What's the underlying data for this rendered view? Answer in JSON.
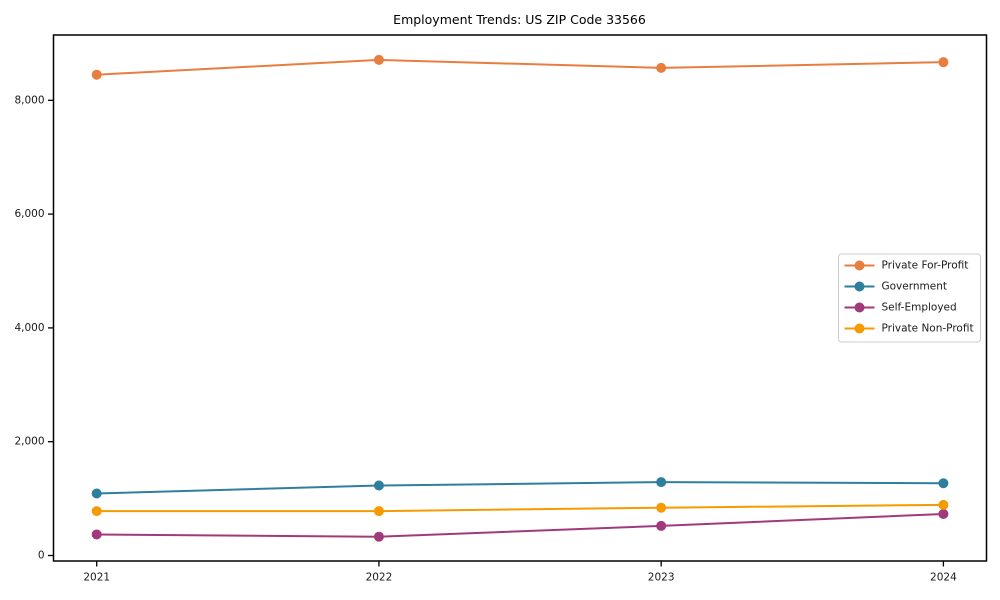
{
  "title": "Employment Trends: US ZIP Code 33566",
  "chart_data": {
    "type": "line",
    "title": "Employment Trends: US ZIP Code 33566",
    "xlabel": "",
    "ylabel": "",
    "x": [
      2021,
      2022,
      2023,
      2024
    ],
    "xtick_labels": [
      "2021",
      "2022",
      "2023",
      "2024"
    ],
    "yticks": [
      0,
      2000,
      4000,
      6000,
      8000
    ],
    "ytick_labels": [
      "0",
      "2,000",
      "4,000",
      "6,000",
      "8,000"
    ],
    "ylim": [
      -100,
      9150
    ],
    "grid": false,
    "legend_position": "right",
    "series": [
      {
        "name": "Private For-Profit",
        "color": "#e87e3e",
        "values": [
          8450,
          8710,
          8570,
          8670
        ]
      },
      {
        "name": "Government",
        "color": "#2e7f9e",
        "values": [
          1090,
          1230,
          1290,
          1270
        ]
      },
      {
        "name": "Self-Employed",
        "color": "#a13a7d",
        "values": [
          370,
          330,
          520,
          730
        ]
      },
      {
        "name": "Private Non-Profit",
        "color": "#f59b00",
        "values": [
          780,
          780,
          840,
          890
        ]
      }
    ]
  }
}
